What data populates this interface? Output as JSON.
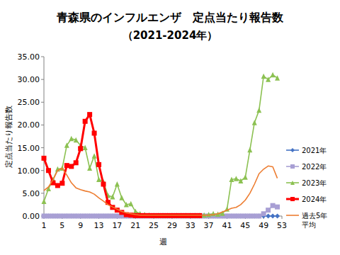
{
  "chart_data": {
    "type": "line",
    "title": "青森県のインフルエンザ　定点当たり報告数",
    "subtitle": "（2021-2024年）",
    "x_label": "週",
    "y_label": "定点当たり報告数",
    "x": [
      1,
      2,
      3,
      4,
      5,
      6,
      7,
      8,
      9,
      10,
      11,
      12,
      13,
      14,
      15,
      16,
      17,
      18,
      19,
      20,
      21,
      22,
      23,
      24,
      25,
      26,
      27,
      28,
      29,
      30,
      31,
      32,
      33,
      34,
      35,
      36,
      37,
      38,
      39,
      40,
      41,
      42,
      43,
      44,
      45,
      46,
      47,
      48,
      49,
      50,
      51,
      52,
      53
    ],
    "xlim": [
      1,
      53
    ],
    "xticks": [
      1,
      5,
      9,
      13,
      17,
      21,
      25,
      29,
      33,
      37,
      41,
      45,
      49,
      53
    ],
    "ylim": [
      0,
      35
    ],
    "yticks": [
      {
        "value": 0,
        "label": "0.00"
      },
      {
        "value": 5,
        "label": "5.00"
      },
      {
        "value": 10,
        "label": "10.00"
      },
      {
        "value": 15,
        "label": "15.00"
      },
      {
        "value": 20,
        "label": "20.00"
      },
      {
        "value": 25,
        "label": "25.00"
      },
      {
        "value": 30,
        "label": "30.00"
      },
      {
        "value": 35,
        "label": "35.00"
      }
    ],
    "grid": false,
    "legend": "right",
    "series": [
      {
        "name": "2021年",
        "color": "#4472c4",
        "marker": "diamond",
        "line_style": "solid",
        "values": [
          0,
          0,
          0,
          0,
          0,
          0,
          0,
          0,
          0,
          0,
          0,
          0,
          0,
          0,
          0,
          0,
          0,
          0,
          0,
          0,
          0,
          0,
          0,
          0,
          0,
          0,
          0,
          0,
          0,
          0,
          0,
          0,
          0,
          0,
          0,
          0,
          0,
          0,
          0,
          0,
          0,
          0,
          0,
          0,
          0,
          0,
          0,
          0,
          0,
          0,
          0,
          0,
          null
        ]
      },
      {
        "name": "2022年",
        "color": "#a89fd4",
        "marker": "square",
        "line_style": "solid",
        "values": [
          0,
          0,
          0,
          0,
          0,
          0,
          0,
          0,
          0,
          0,
          0,
          0,
          0,
          0,
          0,
          0,
          0,
          0,
          0,
          0,
          0,
          0,
          0,
          0,
          0,
          0,
          0,
          0,
          0,
          0,
          0,
          0,
          0,
          0,
          0,
          0,
          0,
          0,
          0,
          0,
          0,
          0,
          0,
          0,
          0,
          0,
          0,
          0,
          0.5,
          1.3,
          2.3,
          2.0,
          null
        ]
      },
      {
        "name": "2023年",
        "color": "#8cc152",
        "marker": "triangle",
        "line_style": "solid",
        "values": [
          3.2,
          6.0,
          8.0,
          10.3,
          10.5,
          15.5,
          17.0,
          16.7,
          15.5,
          15.0,
          10.5,
          13.2,
          8.0,
          7.5,
          4.5,
          4.2,
          7.0,
          4.0,
          2.5,
          2.7,
          1.0,
          0.5,
          0.3,
          0.2,
          0.1,
          0.1,
          0.1,
          0.1,
          0.1,
          0.1,
          0.1,
          0.1,
          0.1,
          0.1,
          0.1,
          0.2,
          0.3,
          0.5,
          0.4,
          0.6,
          1.5,
          8.0,
          8.2,
          7.7,
          8.5,
          14.5,
          20.5,
          23.2,
          30.7,
          30.0,
          31.0,
          30.3,
          null
        ]
      },
      {
        "name": "2024年",
        "color": "#ff0000",
        "marker": "square",
        "line_style": "bold",
        "values": [
          12.7,
          10.0,
          7.3,
          6.7,
          7.2,
          11.1,
          10.9,
          11.7,
          14.8,
          20.8,
          22.3,
          18.2,
          11.3,
          7.0,
          3.0,
          1.9,
          1.3,
          0.8,
          0.3,
          0.2,
          0.1,
          0.1,
          0.1,
          0.1,
          0.1,
          0.1,
          0.1,
          0.1,
          0.1,
          0.1,
          0.1,
          0.1,
          0.1,
          0.1,
          0.1,
          null,
          null,
          null,
          null,
          null,
          null,
          null,
          null,
          null,
          null,
          null,
          null,
          null,
          null,
          null,
          null,
          null,
          null
        ]
      },
      {
        "name": "過去5年\n平均",
        "color": "#ed7d31",
        "marker": "none",
        "line_style": "solid",
        "values": [
          5.6,
          6.4,
          8.0,
          10.0,
          10.5,
          9.0,
          7.3,
          6.2,
          5.8,
          5.5,
          5.3,
          4.8,
          4.0,
          3.3,
          2.5,
          2.0,
          1.5,
          1.0,
          0.7,
          0.5,
          0.3,
          0.2,
          0.2,
          0.2,
          0.2,
          0.2,
          0.2,
          0.2,
          0.2,
          0.2,
          0.2,
          0.2,
          0.2,
          0.2,
          0.2,
          0.2,
          0.2,
          0.3,
          0.5,
          0.9,
          1.3,
          1.7,
          1.9,
          2.5,
          3.5,
          5.0,
          7.0,
          9.3,
          10.3,
          11.0,
          10.8,
          8.3,
          null
        ]
      }
    ]
  }
}
